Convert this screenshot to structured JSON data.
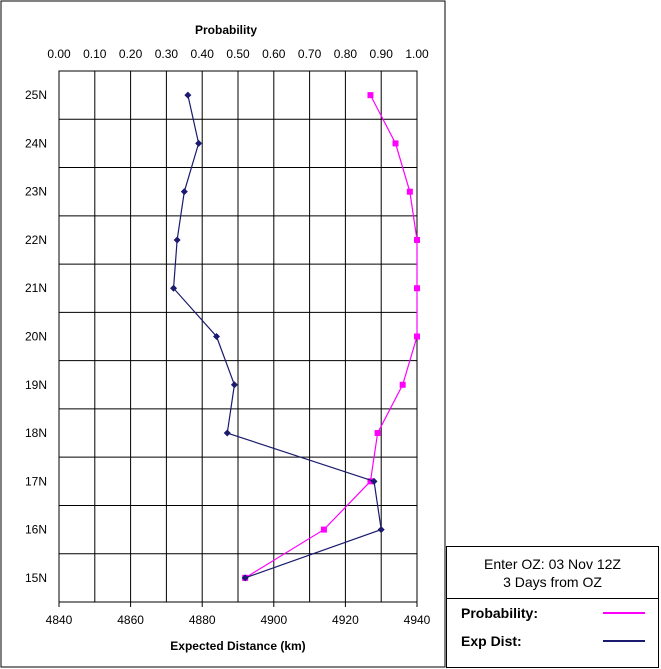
{
  "chart_data": {
    "type": "line",
    "top_axis_title": "Probability",
    "xlabel": "Expected Distance (km)",
    "ylabel": "",
    "top_axis": {
      "range": [
        0.0,
        1.0
      ],
      "ticks": [
        "0.00",
        "0.10",
        "0.20",
        "0.30",
        "0.40",
        "0.50",
        "0.60",
        "0.70",
        "0.80",
        "0.90",
        "1.00"
      ]
    },
    "bottom_axis": {
      "range": [
        4840,
        4940
      ],
      "ticks": [
        "4840",
        "4860",
        "4880",
        "4900",
        "4920",
        "4940"
      ]
    },
    "y_categories": [
      "15N",
      "16N",
      "17N",
      "18N",
      "19N",
      "20N",
      "21N",
      "22N",
      "23N",
      "24N",
      "25N"
    ],
    "grid": true,
    "series": [
      {
        "name": "Probability:",
        "color": "#ff00ff",
        "axis": "top",
        "marker": "square",
        "points": [
          {
            "y": "25N",
            "x": 0.87
          },
          {
            "y": "24N",
            "x": 0.94
          },
          {
            "y": "23N",
            "x": 0.98
          },
          {
            "y": "22N",
            "x": 1.0
          },
          {
            "y": "21N",
            "x": 1.0
          },
          {
            "y": "20N",
            "x": 1.0
          },
          {
            "y": "19N",
            "x": 0.96
          },
          {
            "y": "18N",
            "x": 0.89
          },
          {
            "y": "17N",
            "x": 0.87
          },
          {
            "y": "16N",
            "x": 0.74
          },
          {
            "y": "15N",
            "x": 0.52
          }
        ]
      },
      {
        "name": "Exp Dist:",
        "color": "#1a1a6e",
        "axis": "bottom",
        "marker": "diamond",
        "points": [
          {
            "y": "25N",
            "x": 4876
          },
          {
            "y": "24N",
            "x": 4879
          },
          {
            "y": "23N",
            "x": 4875
          },
          {
            "y": "22N",
            "x": 4873
          },
          {
            "y": "21N",
            "x": 4872
          },
          {
            "y": "20N",
            "x": 4884
          },
          {
            "y": "19N",
            "x": 4889
          },
          {
            "y": "18N",
            "x": 4887
          },
          {
            "y": "17N",
            "x": 4928
          },
          {
            "y": "16N",
            "x": 4930
          },
          {
            "y": "15N",
            "x": 4892
          }
        ]
      }
    ]
  },
  "legend": {
    "header_line1": "Enter OZ:  03 Nov 12Z",
    "header_line2": "3 Days from OZ",
    "probability_label": "Probability:",
    "expdist_label": "Exp Dist:",
    "probability_color": "#ff00ff",
    "expdist_color": "#1a1a6e"
  }
}
